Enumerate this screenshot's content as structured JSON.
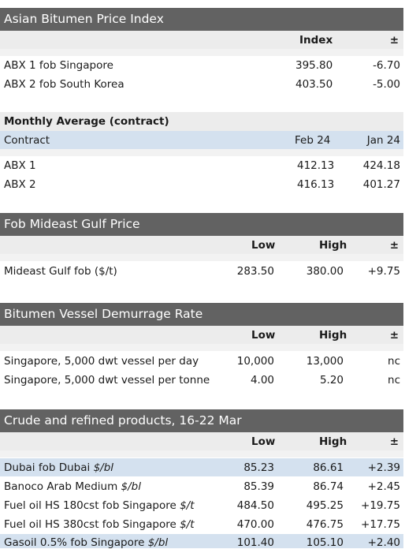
{
  "sections": {
    "abx": {
      "title": "Asian Bitumen Price Index",
      "col_index": "Index",
      "col_change": "±",
      "rows": [
        {
          "label": "ABX 1 fob Singapore",
          "index": "395.80",
          "change": "-6.70"
        },
        {
          "label": "ABX 2 fob South Korea",
          "index": "403.50",
          "change": "-5.00"
        }
      ]
    },
    "monthly": {
      "title": "Monthly Average (contract)",
      "col_contract": "Contract",
      "col_feb": "Feb 24",
      "col_jan": "Jan 24",
      "rows": [
        {
          "label": "ABX 1",
          "feb": "412.13",
          "jan": "424.18"
        },
        {
          "label": "ABX 2",
          "feb": "416.13",
          "jan": "401.27"
        }
      ]
    },
    "mideast": {
      "title": "Fob Mideast Gulf Price",
      "col_low": "Low",
      "col_high": "High",
      "col_change": "±",
      "rows": [
        {
          "label": "Mideast Gulf fob ($/t)",
          "low": "283.50",
          "high": "380.00",
          "change": "+9.75"
        }
      ]
    },
    "demurrage": {
      "title": "Bitumen Vessel Demurrage Rate",
      "col_low": "Low",
      "col_high": "High",
      "col_change": "±",
      "rows": [
        {
          "label": "Singapore, 5,000 dwt vessel per day",
          "low": "10,000",
          "high": "13,000",
          "change": "nc"
        },
        {
          "label": "Singapore, 5,000 dwt vessel per tonne",
          "low": "4.00",
          "high": "5.20",
          "change": "nc"
        }
      ]
    },
    "crude": {
      "title": "Crude and refined products, 16-22 Mar",
      "col_low": "Low",
      "col_high": "High",
      "col_change": "±",
      "rows": [
        {
          "label": "Dubai fob Dubai",
          "unit": "$/bl",
          "low": "85.23",
          "high": "86.61",
          "change": "+2.39"
        },
        {
          "label": "Banoco Arab Medium",
          "unit": "$/bl",
          "low": "85.39",
          "high": "86.74",
          "change": "+2.45"
        },
        {
          "label": "Fuel oil HS 180cst fob Singapore",
          "unit": "$/t",
          "low": "484.50",
          "high": "495.25",
          "change": "+19.75"
        },
        {
          "label": "Fuel oil HS 380cst fob Singapore",
          "unit": "$/t",
          "low": "470.00",
          "high": "476.75",
          "change": "+17.75"
        },
        {
          "label": "Gasoil 0.5% fob Singapore",
          "unit": "$/bl",
          "low": "101.40",
          "high": "105.10",
          "change": "+2.40"
        }
      ]
    }
  }
}
